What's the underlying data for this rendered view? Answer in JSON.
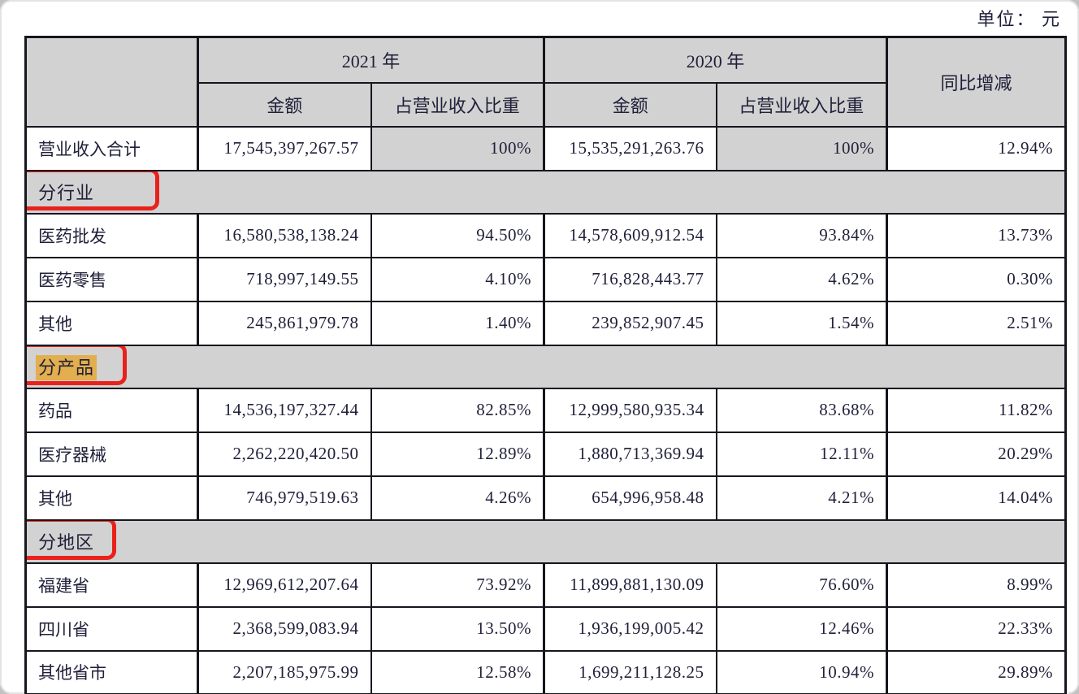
{
  "unit_label": "单位： 元",
  "colors": {
    "header_fill": "#d2d2d2",
    "annotation_red": "#e8221b",
    "highlight_yellow": "#e2ae4e",
    "ink": "#20203a"
  },
  "table": {
    "header": {
      "year_2021": "2021 年",
      "year_2020": "2020 年",
      "amount": "金额",
      "share": "占营业收入比重",
      "yoy": "同比增减"
    },
    "total_row": {
      "label": "营业收入合计",
      "cells": [
        "17,545,397,267.57",
        "100%",
        "15,535,291,263.76",
        "100%",
        "12.94%"
      ]
    },
    "sections": [
      {
        "label": "分行业",
        "highlighted": false,
        "rows": [
          {
            "label": "医药批发",
            "cells": [
              "16,580,538,138.24",
              "94.50%",
              "14,578,609,912.54",
              "93.84%",
              "13.73%"
            ]
          },
          {
            "label": "医药零售",
            "cells": [
              "718,997,149.55",
              "4.10%",
              "716,828,443.77",
              "4.62%",
              "0.30%"
            ]
          },
          {
            "label": "其他",
            "cells": [
              "245,861,979.78",
              "1.40%",
              "239,852,907.45",
              "1.54%",
              "2.51%"
            ]
          }
        ]
      },
      {
        "label": "分产品",
        "highlighted": true,
        "rows": [
          {
            "label": "药品",
            "cells": [
              "14,536,197,327.44",
              "82.85%",
              "12,999,580,935.34",
              "83.68%",
              "11.82%"
            ]
          },
          {
            "label": "医疗器械",
            "cells": [
              "2,262,220,420.50",
              "12.89%",
              "1,880,713,369.94",
              "12.11%",
              "20.29%"
            ]
          },
          {
            "label": "其他",
            "cells": [
              "746,979,519.63",
              "4.26%",
              "654,996,958.48",
              "4.21%",
              "14.04%"
            ]
          }
        ]
      },
      {
        "label": "分地区",
        "highlighted": false,
        "rows": [
          {
            "label": "福建省",
            "cells": [
              "12,969,612,207.64",
              "73.92%",
              "11,899,881,130.09",
              "76.60%",
              "8.99%"
            ]
          },
          {
            "label": "四川省",
            "cells": [
              "2,368,599,083.94",
              "13.50%",
              "1,936,199,005.42",
              "12.46%",
              "22.33%"
            ]
          },
          {
            "label": "其他省市",
            "cells": [
              "2,207,185,975.99",
              "12.58%",
              "1,699,211,128.25",
              "10.94%",
              "29.89%"
            ]
          }
        ]
      }
    ]
  }
}
